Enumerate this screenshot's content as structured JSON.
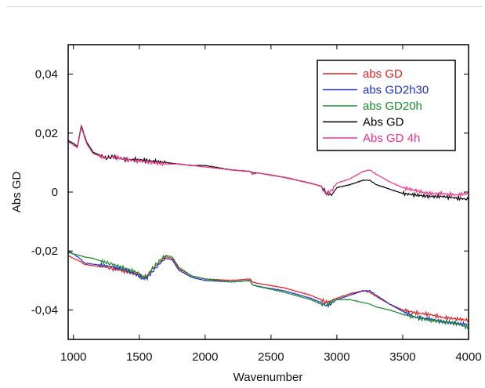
{
  "chart_data": {
    "type": "line",
    "title": "",
    "xlabel": "Wavenumber",
    "ylabel": "Abs GD",
    "xlim": [
      960,
      4000
    ],
    "ylim": [
      -0.05,
      0.05
    ],
    "x_ticks": [
      1000,
      1500,
      2000,
      2500,
      3000,
      3500,
      4000
    ],
    "x_tick_labels": [
      "1000",
      "1500",
      "2000",
      "2500",
      "3000",
      "3500",
      "4000"
    ],
    "y_ticks": [
      0.04,
      0.02,
      0,
      -0.02,
      -0.04
    ],
    "y_tick_labels": [
      "0,04",
      "0,02",
      "0",
      "-0,02",
      "-0,04"
    ],
    "grid": false,
    "legend_position": "top-right",
    "series": [
      {
        "name": "abs GD",
        "color": "#e02020",
        "x": [
          960,
          1000,
          1050,
          1080,
          1150,
          1250,
          1300,
          1400,
          1500,
          1530,
          1560,
          1600,
          1650,
          1700,
          1750,
          1800,
          1900,
          2000,
          2200,
          2340,
          2360,
          2400,
          2600,
          2800,
          2880,
          2920,
          2950,
          3000,
          3100,
          3200,
          3250,
          3300,
          3400,
          3500,
          3600,
          3700,
          3800,
          3900,
          4000
        ],
        "y": [
          -0.0215,
          -0.0225,
          -0.0235,
          -0.0245,
          -0.025,
          -0.0255,
          -0.026,
          -0.027,
          -0.028,
          -0.029,
          -0.0285,
          -0.026,
          -0.024,
          -0.022,
          -0.0225,
          -0.026,
          -0.0285,
          -0.0295,
          -0.03,
          -0.0295,
          -0.0305,
          -0.031,
          -0.0325,
          -0.035,
          -0.0365,
          -0.0375,
          -0.037,
          -0.036,
          -0.0345,
          -0.0335,
          -0.034,
          -0.0355,
          -0.038,
          -0.04,
          -0.041,
          -0.0415,
          -0.0425,
          -0.043,
          -0.0435
        ]
      },
      {
        "name": "abs GD2h30",
        "color": "#2030c0",
        "x": [
          960,
          1000,
          1050,
          1080,
          1150,
          1250,
          1300,
          1400,
          1500,
          1530,
          1560,
          1600,
          1650,
          1700,
          1750,
          1800,
          1900,
          2000,
          2200,
          2340,
          2360,
          2400,
          2600,
          2800,
          2880,
          2920,
          2950,
          3000,
          3100,
          3200,
          3250,
          3300,
          3400,
          3500,
          3600,
          3700,
          3800,
          3900,
          4000
        ],
        "y": [
          -0.02,
          -0.021,
          -0.0225,
          -0.024,
          -0.0245,
          -0.025,
          -0.0255,
          -0.0265,
          -0.0285,
          -0.0295,
          -0.029,
          -0.027,
          -0.0245,
          -0.0225,
          -0.023,
          -0.0265,
          -0.029,
          -0.03,
          -0.0305,
          -0.03,
          -0.0315,
          -0.032,
          -0.0335,
          -0.036,
          -0.0375,
          -0.0385,
          -0.038,
          -0.0365,
          -0.035,
          -0.0335,
          -0.0335,
          -0.035,
          -0.038,
          -0.0405,
          -0.0425,
          -0.043,
          -0.044,
          -0.0445,
          -0.045
        ]
      },
      {
        "name": "abs GD20h",
        "color": "#1a8a30",
        "x": [
          960,
          1000,
          1050,
          1080,
          1150,
          1250,
          1300,
          1400,
          1500,
          1530,
          1560,
          1600,
          1650,
          1700,
          1750,
          1800,
          1900,
          2000,
          2200,
          2340,
          2360,
          2400,
          2600,
          2800,
          2880,
          2920,
          2950,
          3000,
          3100,
          3200,
          3250,
          3300,
          3400,
          3500,
          3600,
          3700,
          3800,
          3900,
          4000
        ],
        "y": [
          -0.0205,
          -0.021,
          -0.0215,
          -0.022,
          -0.0225,
          -0.024,
          -0.0245,
          -0.026,
          -0.0275,
          -0.029,
          -0.0285,
          -0.026,
          -0.0235,
          -0.0215,
          -0.022,
          -0.0255,
          -0.0285,
          -0.0295,
          -0.0305,
          -0.03,
          -0.0315,
          -0.032,
          -0.034,
          -0.0365,
          -0.038,
          -0.0385,
          -0.0375,
          -0.0365,
          -0.0365,
          -0.0375,
          -0.038,
          -0.039,
          -0.04,
          -0.0415,
          -0.0425,
          -0.0435,
          -0.044,
          -0.0445,
          -0.046
        ]
      },
      {
        "name": "Abs GD",
        "color": "#000000",
        "x": [
          960,
          1000,
          1030,
          1060,
          1100,
          1150,
          1250,
          1300,
          1400,
          1500,
          1600,
          1700,
          1800,
          1900,
          2000,
          2200,
          2340,
          2360,
          2400,
          2600,
          2800,
          2880,
          2920,
          2960,
          3000,
          3100,
          3200,
          3250,
          3300,
          3400,
          3500,
          3600,
          3700,
          3800,
          3900,
          4000
        ],
        "y": [
          0.0175,
          0.0165,
          0.0155,
          0.0225,
          0.017,
          0.0135,
          0.0115,
          0.012,
          0.011,
          0.011,
          0.0105,
          0.01,
          0.0095,
          0.009,
          0.009,
          0.0075,
          0.007,
          0.0065,
          0.0065,
          0.005,
          0.003,
          0.002,
          -0.0005,
          -0.001,
          0.0015,
          0.0025,
          0.004,
          0.004,
          0.0025,
          0.001,
          -0.0005,
          -0.001,
          -0.0015,
          -0.0015,
          -0.002,
          -0.0025
        ]
      },
      {
        "name": "Abs GD 4h",
        "color": "#f0308a",
        "x": [
          960,
          1000,
          1030,
          1060,
          1100,
          1150,
          1250,
          1300,
          1400,
          1500,
          1600,
          1700,
          1800,
          1900,
          2000,
          2200,
          2340,
          2360,
          2400,
          2600,
          2800,
          2880,
          2920,
          2960,
          3000,
          3100,
          3200,
          3250,
          3300,
          3400,
          3500,
          3600,
          3700,
          3800,
          3900,
          4000
        ],
        "y": [
          0.017,
          0.016,
          0.015,
          0.022,
          0.0165,
          0.013,
          0.0115,
          0.012,
          0.011,
          0.0105,
          0.01,
          0.0095,
          0.0095,
          0.009,
          0.0085,
          0.0075,
          0.007,
          0.006,
          0.0065,
          0.005,
          0.003,
          0.002,
          -0.0005,
          0.0005,
          0.003,
          0.0045,
          0.007,
          0.0075,
          0.006,
          0.0035,
          0.0015,
          0.0005,
          -0.0005,
          -0.0005,
          -0.001,
          -0.0005
        ]
      }
    ]
  }
}
